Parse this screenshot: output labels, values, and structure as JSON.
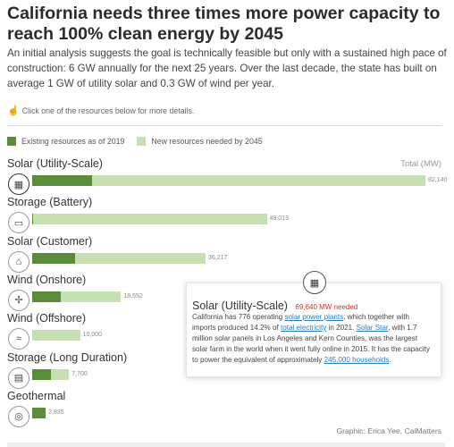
{
  "header": {
    "title": "California needs three times more power capacity to reach 100% clean energy by 2045",
    "intro": "An initial analysis suggests the goal is technically feasible but only with a sustained high pace of construction: 6 GW annually for the next 25 years. Over the last decade, the state has built on average 1 GW of utility solar and 0.3 GW of wind per year.",
    "hint": "Click one of the resources below for more details."
  },
  "legend": {
    "existing": "Existing resources as of 2019",
    "new": "New resources needed by 2045"
  },
  "colors": {
    "existing": "#5b8c3a",
    "new": "#c6dfb3",
    "accent": "#c0392b",
    "link": "#2b7fb8"
  },
  "chart_data": {
    "type": "bar",
    "orientation": "horizontal",
    "stacked": true,
    "total_label": "Total (MW)",
    "categories": [
      "Solar (Utility-Scale)",
      "Storage (Battery)",
      "Solar (Customer)",
      "Wind (Onshore)",
      "Wind (Offshore)",
      "Storage (Long Duration)",
      "Geothermal"
    ],
    "series": [
      {
        "name": "Existing resources as of 2019",
        "values": [
          12500,
          200,
          9000,
          6000,
          0,
          4000,
          2835
        ]
      },
      {
        "name": "New resources needed by 2045",
        "values": [
          69640,
          48813,
          27217,
          12552,
          10000,
          3700,
          0
        ]
      }
    ],
    "totals": [
      82140,
      49013,
      36217,
      18552,
      10000,
      7700,
      2835
    ],
    "total_labels": [
      "82,140",
      "49,013",
      "36,217",
      "18,552",
      "10,000",
      "7,700",
      "2,835"
    ],
    "xlim": [
      0,
      82140
    ],
    "icons": [
      "solar-panel-icon",
      "battery-icon",
      "house-solar-icon",
      "wind-turbine-icon",
      "offshore-wind-icon",
      "long-storage-icon",
      "geothermal-icon"
    ],
    "legend_position": "top-left"
  },
  "tooltip": {
    "title": "Solar (Utility-Scale)",
    "needed": "69,640 MW needed",
    "t1": "California has 776 operating ",
    "link1": "solar power plants",
    "t2": ", which together with imports produced 14.2% of ",
    "link2": "total electricity",
    "t3": " in 2021. ",
    "link3": "Solar Star",
    "t4": ", with 1.7 million solar panels in Los Angeles and Kern Counties, was the largest solar farm in the world when it went fully online in 2015. It has the capacity to power the equivalent of approximately ",
    "link4": "245,000 households",
    "t5": "."
  },
  "credit": "Graphic: Erica Yee, CalMatters"
}
